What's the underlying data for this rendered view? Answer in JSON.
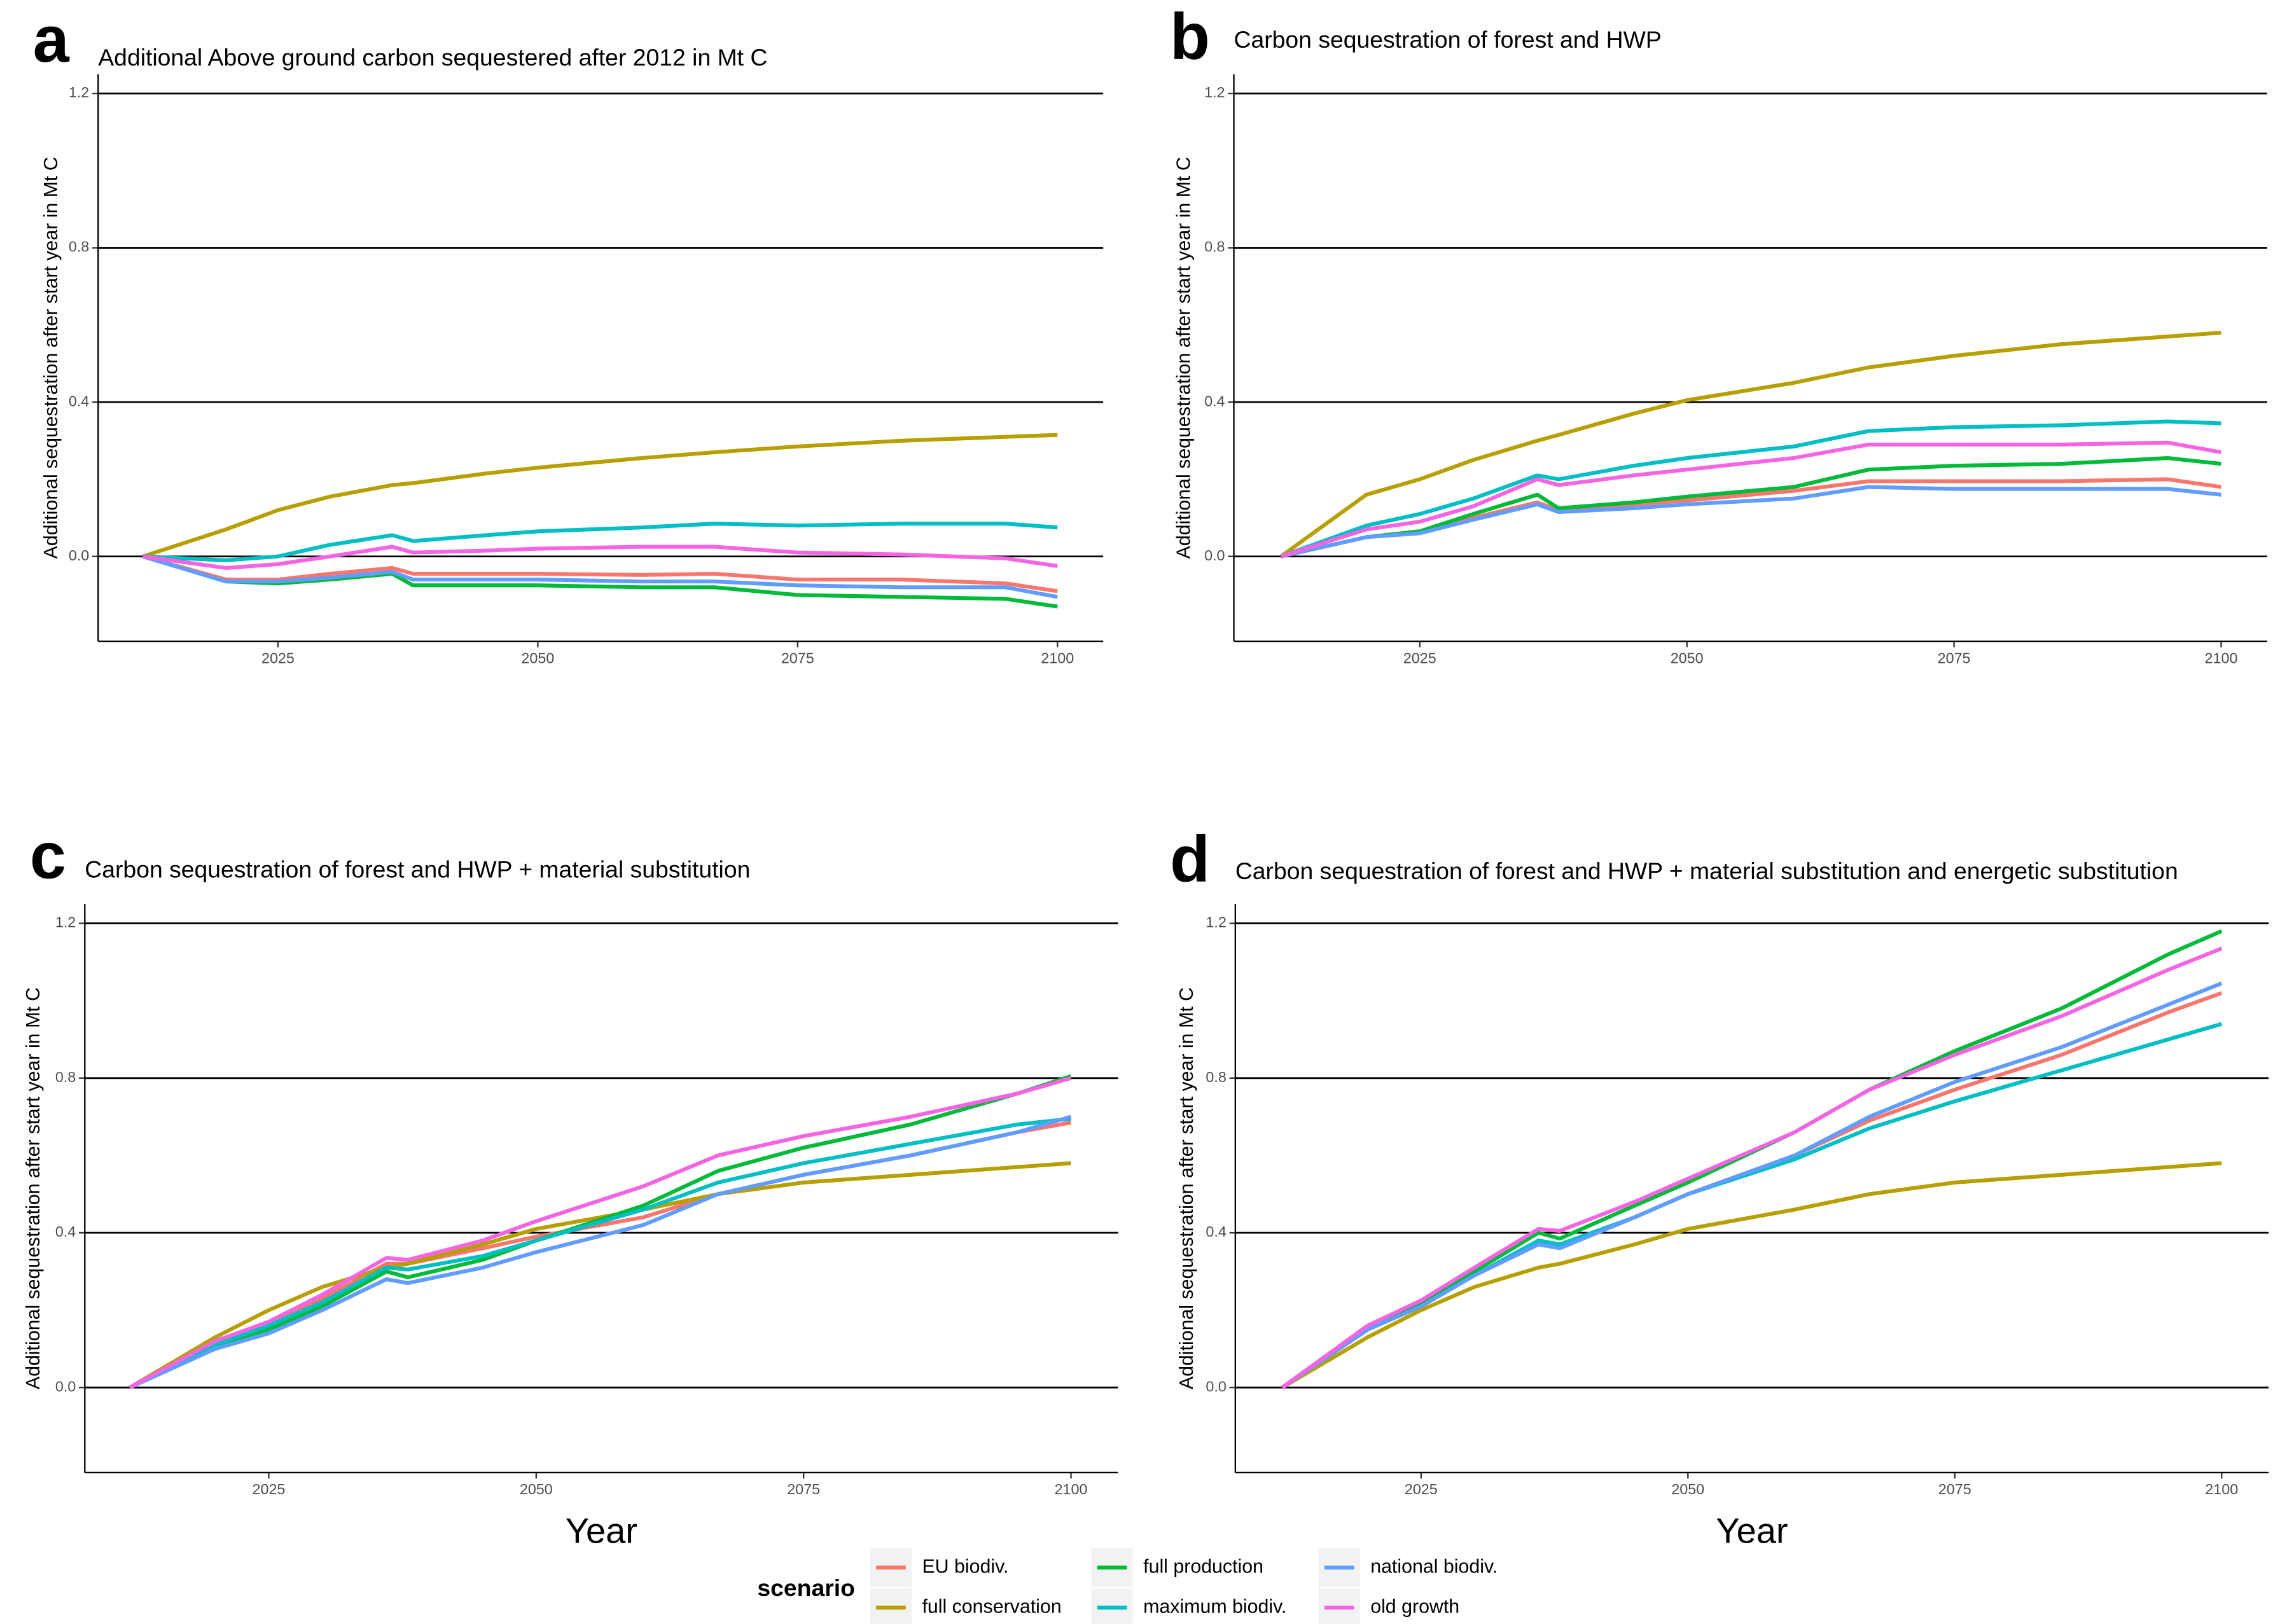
{
  "chart_data": [
    {
      "type": "line",
      "panel_label": "a",
      "title": "Additional Above ground carbon sequestered after 2012 in Mt C",
      "ylabel": "Additional sequestration after start year in Mt C",
      "x": [
        2012,
        2020,
        2025,
        2030,
        2036,
        2038,
        2045,
        2050,
        2060,
        2067,
        2075,
        2085,
        2095,
        2100
      ],
      "xlim": [
        2007.7,
        2104.4
      ],
      "xticks": [
        2025,
        2050,
        2075,
        2100
      ],
      "ylim": [
        -0.22,
        1.25
      ],
      "yticks": [
        {
          "value": 0,
          "label": "0.0"
        },
        0.4,
        0.8,
        1.2
      ],
      "grid": true,
      "series": [
        {
          "name": "EU biodiv.",
          "color": "#F8766D",
          "values": [
            0,
            -0.06,
            -0.06,
            -0.045,
            -0.03,
            -0.045,
            -0.045,
            -0.045,
            -0.048,
            -0.045,
            -0.06,
            -0.06,
            -0.07,
            -0.09
          ]
        },
        {
          "name": "full conservation",
          "color": "#B79F00",
          "values": [
            0,
            0.07,
            0.12,
            0.155,
            0.185,
            0.19,
            0.215,
            0.23,
            0.255,
            0.27,
            0.285,
            0.3,
            0.31,
            0.315
          ]
        },
        {
          "name": "full production",
          "color": "#00BA38",
          "values": [
            0,
            -0.065,
            -0.07,
            -0.06,
            -0.045,
            -0.075,
            -0.075,
            -0.075,
            -0.08,
            -0.08,
            -0.1,
            -0.105,
            -0.11,
            -0.13
          ]
        },
        {
          "name": "maximum biodiv.",
          "color": "#00BFC4",
          "values": [
            0,
            -0.01,
            0,
            0.03,
            0.055,
            0.04,
            0.055,
            0.065,
            0.075,
            0.085,
            0.08,
            0.085,
            0.085,
            0.075
          ]
        },
        {
          "name": "national biodiv.",
          "color": "#619CFF",
          "values": [
            0,
            -0.065,
            -0.065,
            -0.055,
            -0.04,
            -0.06,
            -0.06,
            -0.06,
            -0.065,
            -0.065,
            -0.075,
            -0.08,
            -0.08,
            -0.105
          ]
        },
        {
          "name": "old growth",
          "color": "#F564E3",
          "values": [
            0,
            -0.03,
            -0.02,
            0,
            0.025,
            0.01,
            0.015,
            0.02,
            0.025,
            0.025,
            0.01,
            0.005,
            -0.005,
            -0.025
          ]
        }
      ]
    },
    {
      "type": "line",
      "panel_label": "b",
      "title": "Carbon sequestration of forest and HWP",
      "ylabel": "Additional sequestration after start year in Mt C",
      "x": [
        2012,
        2020,
        2025,
        2030,
        2036,
        2038,
        2045,
        2050,
        2060,
        2067,
        2075,
        2085,
        2095,
        2100
      ],
      "xlim": [
        2007.6,
        2104.3
      ],
      "xticks": [
        2025,
        2050,
        2075,
        2100
      ],
      "ylim": [
        -0.22,
        1.25
      ],
      "yticks": [
        {
          "value": 0,
          "label": "0.0"
        },
        0.4,
        0.8,
        1.2
      ],
      "grid": true,
      "series": [
        {
          "name": "EU biodiv.",
          "color": "#F8766D",
          "values": [
            0,
            0.05,
            0.065,
            0.1,
            0.14,
            0.12,
            0.135,
            0.145,
            0.17,
            0.195,
            0.195,
            0.195,
            0.2,
            0.18
          ]
        },
        {
          "name": "full conservation",
          "color": "#B79F00",
          "values": [
            0,
            0.16,
            0.2,
            0.25,
            0.3,
            0.315,
            0.37,
            0.405,
            0.45,
            0.49,
            0.52,
            0.55,
            0.57,
            0.58
          ]
        },
        {
          "name": "full production",
          "color": "#00BA38",
          "values": [
            0,
            0.05,
            0.065,
            0.11,
            0.16,
            0.125,
            0.14,
            0.155,
            0.18,
            0.225,
            0.235,
            0.24,
            0.255,
            0.24
          ]
        },
        {
          "name": "maximum biodiv.",
          "color": "#00BFC4",
          "values": [
            0,
            0.08,
            0.11,
            0.15,
            0.21,
            0.2,
            0.235,
            0.255,
            0.285,
            0.325,
            0.335,
            0.34,
            0.35,
            0.345
          ]
        },
        {
          "name": "national biodiv.",
          "color": "#619CFF",
          "values": [
            0,
            0.05,
            0.06,
            0.095,
            0.135,
            0.115,
            0.125,
            0.135,
            0.15,
            0.18,
            0.175,
            0.175,
            0.175,
            0.16
          ]
        },
        {
          "name": "old growth",
          "color": "#F564E3",
          "values": [
            0,
            0.07,
            0.09,
            0.13,
            0.2,
            0.185,
            0.21,
            0.225,
            0.255,
            0.29,
            0.29,
            0.29,
            0.295,
            0.27
          ]
        }
      ]
    },
    {
      "type": "line",
      "panel_label": "c",
      "title": "Carbon sequestration of forest and HWP + material substitution",
      "ylabel": "Additional sequestration after start year in Mt C",
      "xlabel": "Year",
      "x": [
        2012,
        2020,
        2025,
        2030,
        2036,
        2038,
        2045,
        2050,
        2060,
        2067,
        2075,
        2085,
        2095,
        2100
      ],
      "xlim": [
        2007.8,
        2104.4
      ],
      "xticks": [
        2025,
        2050,
        2075,
        2100
      ],
      "ylim": [
        -0.22,
        1.25
      ],
      "yticks": [
        {
          "value": 0,
          "label": "0.0"
        },
        0.4,
        0.8,
        1.2
      ],
      "grid": true,
      "series": [
        {
          "name": "EU biodiv.",
          "color": "#F8766D",
          "values": [
            0,
            0.11,
            0.16,
            0.23,
            0.32,
            0.32,
            0.36,
            0.39,
            0.44,
            0.5,
            0.55,
            0.6,
            0.66,
            0.685
          ]
        },
        {
          "name": "full conservation",
          "color": "#B79F00",
          "values": [
            0,
            0.13,
            0.2,
            0.26,
            0.31,
            0.32,
            0.37,
            0.41,
            0.46,
            0.5,
            0.53,
            0.55,
            0.57,
            0.58
          ]
        },
        {
          "name": "full production",
          "color": "#00BA38",
          "values": [
            0,
            0.11,
            0.15,
            0.21,
            0.3,
            0.285,
            0.33,
            0.38,
            0.47,
            0.56,
            0.62,
            0.68,
            0.76,
            0.805
          ]
        },
        {
          "name": "maximum biodiv.",
          "color": "#00BFC4",
          "values": [
            0,
            0.11,
            0.16,
            0.22,
            0.31,
            0.305,
            0.34,
            0.38,
            0.46,
            0.53,
            0.58,
            0.63,
            0.68,
            0.695
          ]
        },
        {
          "name": "national biodiv.",
          "color": "#619CFF",
          "values": [
            0,
            0.1,
            0.14,
            0.2,
            0.28,
            0.27,
            0.31,
            0.35,
            0.42,
            0.5,
            0.55,
            0.6,
            0.66,
            0.7
          ]
        },
        {
          "name": "old growth",
          "color": "#F564E3",
          "values": [
            0,
            0.12,
            0.17,
            0.24,
            0.335,
            0.33,
            0.38,
            0.43,
            0.52,
            0.6,
            0.65,
            0.7,
            0.76,
            0.8
          ]
        }
      ]
    },
    {
      "type": "line",
      "panel_label": "d",
      "title": "Carbon sequestration of forest and HWP + material substitution and energetic substitution",
      "ylabel": "Additional sequestration after start year in Mt C",
      "xlabel": "Year",
      "x": [
        2012,
        2020,
        2025,
        2030,
        2036,
        2038,
        2045,
        2050,
        2060,
        2067,
        2075,
        2085,
        2095,
        2100
      ],
      "xlim": [
        2007.6,
        2104.4
      ],
      "xticks": [
        2025,
        2050,
        2075,
        2100
      ],
      "ylim": [
        -0.22,
        1.25
      ],
      "yticks": [
        {
          "value": 0,
          "label": "0.0"
        },
        0.4,
        0.8,
        1.2
      ],
      "grid": true,
      "series": [
        {
          "name": "EU biodiv.",
          "color": "#F8766D",
          "values": [
            0,
            0.15,
            0.21,
            0.29,
            0.37,
            0.365,
            0.44,
            0.5,
            0.6,
            0.69,
            0.77,
            0.86,
            0.97,
            1.02
          ]
        },
        {
          "name": "full conservation",
          "color": "#B79F00",
          "values": [
            0,
            0.13,
            0.2,
            0.26,
            0.31,
            0.32,
            0.37,
            0.41,
            0.46,
            0.5,
            0.53,
            0.55,
            0.57,
            0.58
          ]
        },
        {
          "name": "full production",
          "color": "#00BA38",
          "values": [
            0,
            0.16,
            0.22,
            0.3,
            0.4,
            0.385,
            0.47,
            0.53,
            0.66,
            0.77,
            0.87,
            0.98,
            1.12,
            1.18
          ]
        },
        {
          "name": "maximum biodiv.",
          "color": "#00BFC4",
          "values": [
            0,
            0.15,
            0.21,
            0.29,
            0.38,
            0.37,
            0.44,
            0.5,
            0.59,
            0.67,
            0.74,
            0.82,
            0.9,
            0.94
          ]
        },
        {
          "name": "national biodiv.",
          "color": "#619CFF",
          "values": [
            0,
            0.15,
            0.21,
            0.29,
            0.37,
            0.36,
            0.44,
            0.5,
            0.6,
            0.7,
            0.79,
            0.88,
            0.99,
            1.045
          ]
        },
        {
          "name": "old growth",
          "color": "#F564E3",
          "values": [
            0,
            0.16,
            0.225,
            0.31,
            0.41,
            0.405,
            0.48,
            0.54,
            0.66,
            0.77,
            0.86,
            0.96,
            1.08,
            1.135
          ]
        }
      ]
    }
  ],
  "legend": {
    "title": "scenario"
  }
}
